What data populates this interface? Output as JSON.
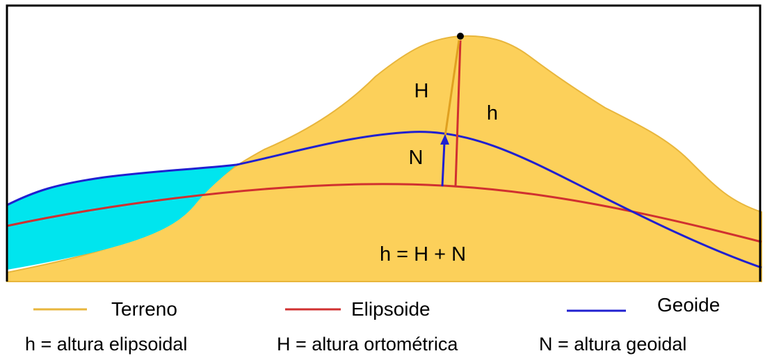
{
  "labels": {
    "H": "H",
    "h": "h",
    "N": "N",
    "equation": "h = H + N"
  },
  "legend": [
    "Terreno",
    "Elipsoide",
    "Geoide"
  ],
  "definitions": [
    "h = altura elipsoidal",
    "H = altura ortométrica",
    "N = altura geoidal"
  ]
}
